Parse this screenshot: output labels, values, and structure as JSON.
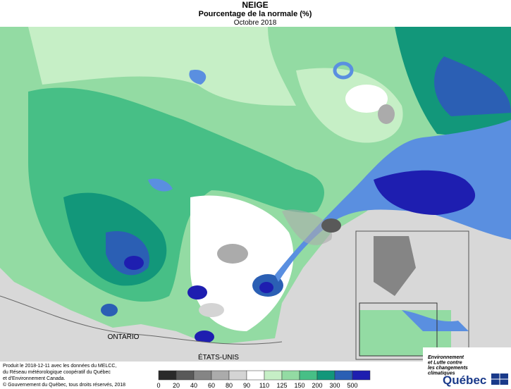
{
  "header": {
    "title": "NEIGE",
    "subtitle": "Pourcentage de la normale (%)",
    "period": "Octobre 2018"
  },
  "labels": {
    "province": "ONTARIO",
    "country": "ÉTATS-UNIS"
  },
  "legend": {
    "bins": [
      0,
      20,
      40,
      60,
      80,
      90,
      110,
      125,
      150,
      200,
      300,
      500
    ],
    "colors": [
      "#2a2a2a",
      "#595959",
      "#858585",
      "#ababab",
      "#d4d4d4",
      "#ffffff",
      "#c6efc6",
      "#93dba3",
      "#47bf86",
      "#12977a",
      "#2b5fb4",
      "#1e1eb0"
    ]
  },
  "footer": {
    "lines": [
      "Produit le 2018-12-11 avec les données du MELCC,",
      "du Réseau météorologique coopératif du Québec",
      "et d'Environnement Canada."
    ],
    "copyright": "© Gouvernement du Québec, tous droits réservés, 2018"
  },
  "logo": {
    "ministry": [
      "Environnement",
      "et Lutte contre",
      "les changements",
      "climatiques"
    ],
    "name": "Québec"
  }
}
